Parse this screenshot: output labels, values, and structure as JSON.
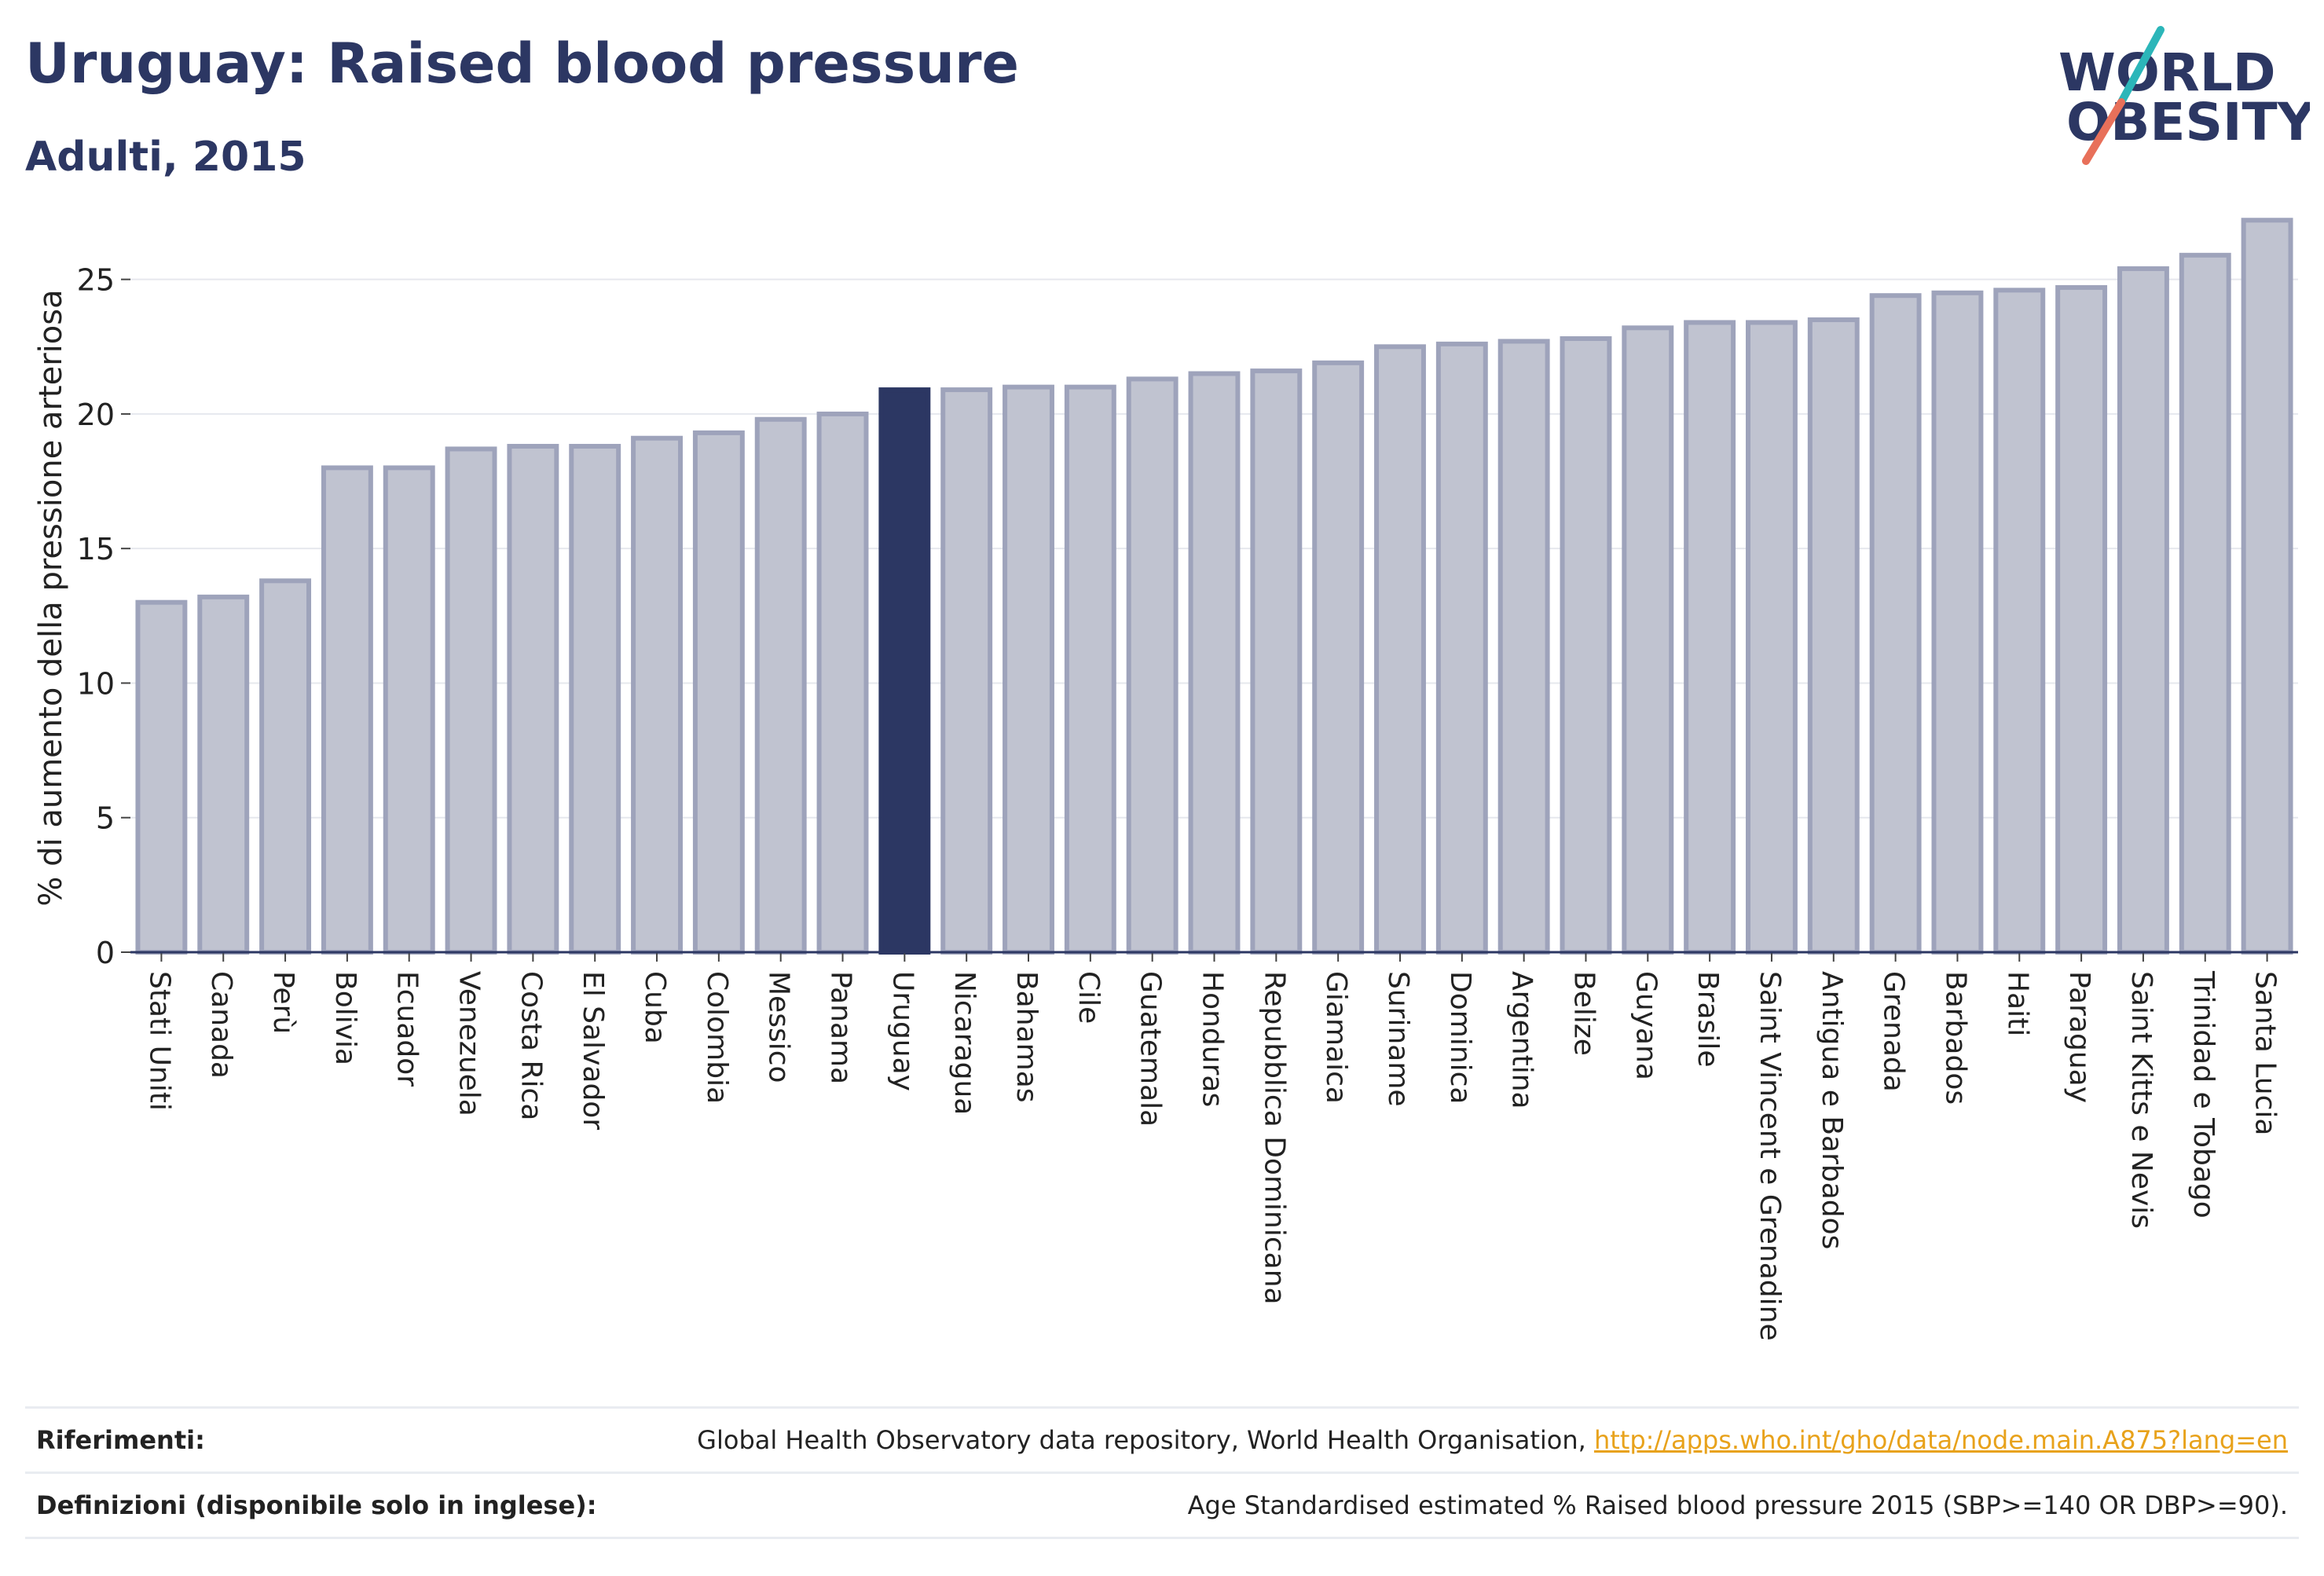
{
  "header": {
    "title": "Uruguay: Raised blood pressure",
    "subtitle": "Adulti, 2015",
    "logo_line1": "WORLD",
    "logo_line2": "OBESITY"
  },
  "colors": {
    "title": "#2c3763",
    "bar": "#c0c3d0",
    "bar_border": "#9ea3bb",
    "highlight": "#2c3763",
    "logo_teal": "#2cb6b9",
    "logo_coral": "#e8705a",
    "link": "#e8a21b"
  },
  "chart_data": {
    "type": "bar",
    "title": "Uruguay: Raised blood pressure",
    "subtitle": "Adulti, 2015",
    "ylabel": "% di aumento della pressione arteriosa",
    "xlabel": "",
    "ylim": [
      0,
      27.5
    ],
    "yticks": [
      0,
      5,
      10,
      15,
      20,
      25
    ],
    "grid": true,
    "highlight": "Uruguay",
    "categories": [
      "Stati Uniti",
      "Canada",
      "Perù",
      "Bolivia",
      "Ecuador",
      "Venezuela",
      "Costa Rica",
      "El Salvador",
      "Cuba",
      "Colombia",
      "Messico",
      "Panama",
      "Uruguay",
      "Nicaragua",
      "Bahamas",
      "Cile",
      "Guatemala",
      "Honduras",
      "Repubblica Dominicana",
      "Giamaica",
      "Suriname",
      "Dominica",
      "Argentina",
      "Belize",
      "Guyana",
      "Brasile",
      "Saint Vincent e Grenadine",
      "Antigua e Barbados",
      "Grenada",
      "Barbados",
      "Haiti",
      "Paraguay",
      "Saint Kitts e Nevis",
      "Trinidad e Tobago",
      "Santa Lucia"
    ],
    "values": [
      13.0,
      13.2,
      13.8,
      18.0,
      18.0,
      18.7,
      18.8,
      18.8,
      19.1,
      19.3,
      19.8,
      20.0,
      20.9,
      20.9,
      21.0,
      21.0,
      21.3,
      21.5,
      21.6,
      21.9,
      22.5,
      22.6,
      22.7,
      22.8,
      23.2,
      23.4,
      23.4,
      23.5,
      24.4,
      24.5,
      24.6,
      24.7,
      25.4,
      25.9,
      27.2
    ]
  },
  "footer": {
    "references_label": "Riferimenti:",
    "references_text": "Global Health Observatory data repository, World Health Organisation, ",
    "references_link": "http://apps.who.int/gho/data/node.main.A875?lang=en",
    "definitions_label": "Definizioni (disponibile solo in inglese):",
    "definitions_text": "Age Standardised estimated % Raised blood pressure 2015 (SBP>=140 OR DBP>=90)."
  }
}
